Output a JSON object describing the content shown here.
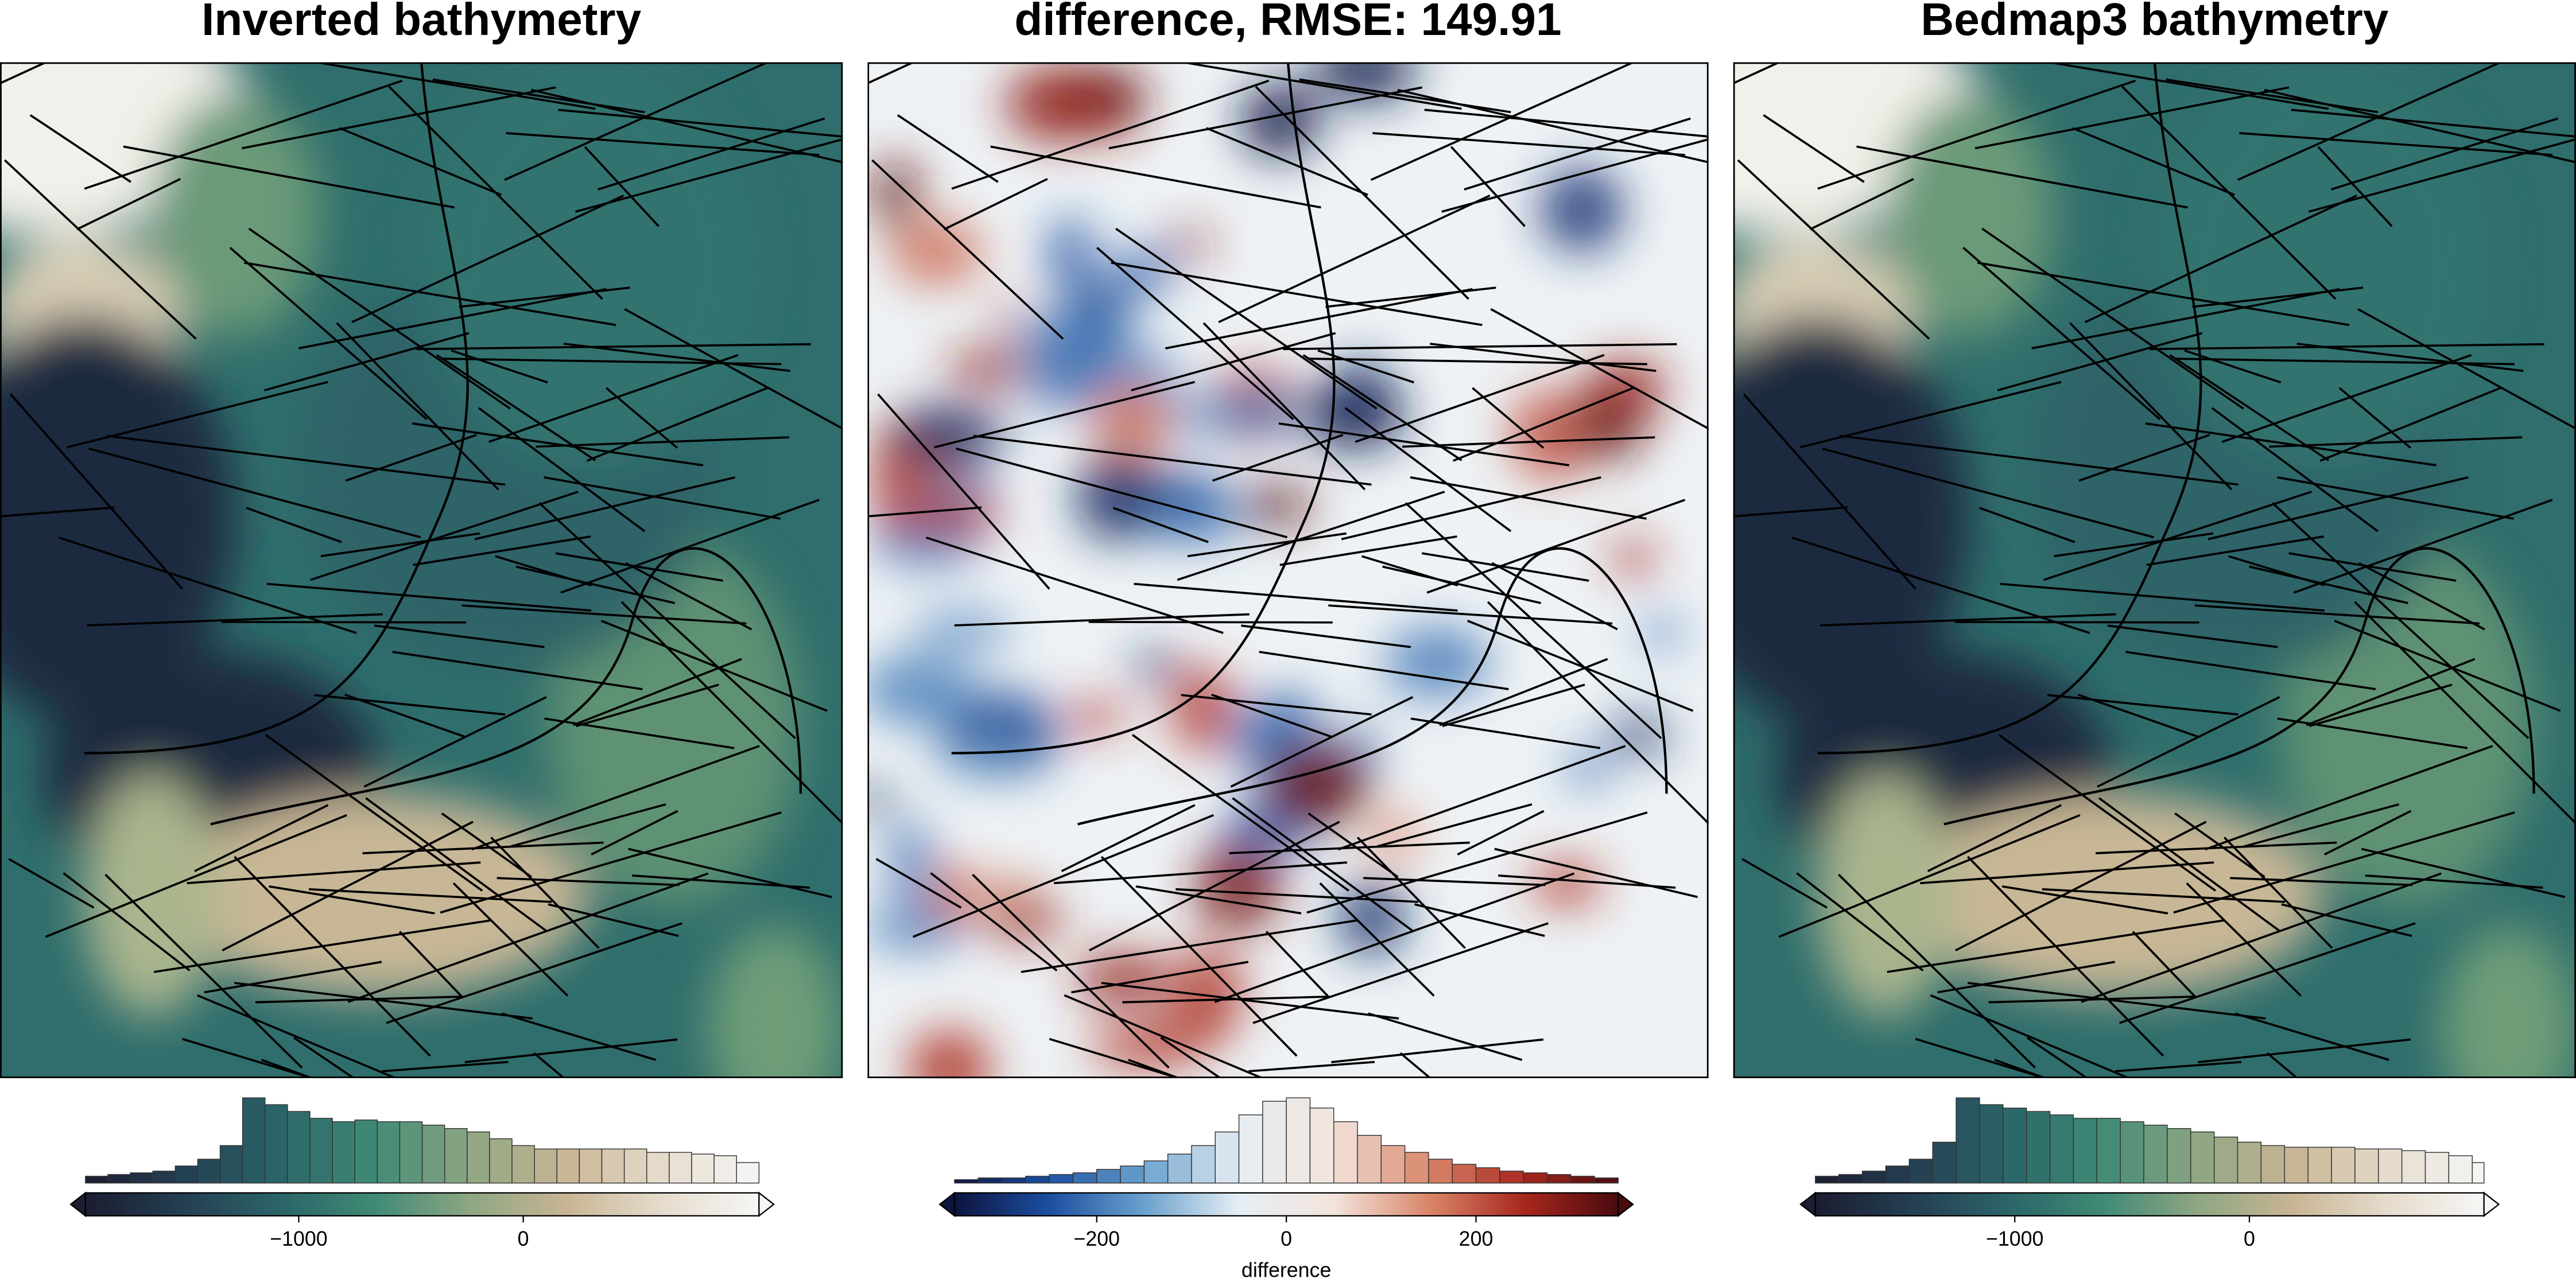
{
  "chart_data": [
    {
      "type": "histogram",
      "title": "Inverted bathymetry",
      "bins": [
        -1950,
        -1850,
        -1750,
        -1650,
        -1550,
        -1450,
        -1350,
        -1250,
        -1150,
        -1050,
        -950,
        -850,
        -750,
        -650,
        -550,
        -450,
        -350,
        -250,
        -150,
        -50,
        50,
        150,
        250,
        350,
        450,
        550,
        650,
        750,
        850,
        950,
        1050
      ],
      "values": [
        4,
        5,
        6,
        7,
        10,
        14,
        22,
        50,
        46,
        42,
        38,
        36,
        37,
        36,
        36,
        34,
        32,
        30,
        26,
        22,
        20,
        20,
        20,
        20,
        20,
        18,
        18,
        17,
        16,
        12
      ],
      "xlim": [
        -1950,
        1050
      ],
      "xticks": [
        {
          "value": -1000,
          "label": "−1000"
        },
        0
      ],
      "colormap": [
        "#1c1d30",
        "#243e52",
        "#2a6468",
        "#3f8a75",
        "#8ea683",
        "#c8b594",
        "#e6dccd",
        "#f6f6f6"
      ]
    },
    {
      "type": "histogram",
      "title": "difference, RMSE: 149.91",
      "xlabel": "difference",
      "bins": [
        -350,
        -325,
        -300,
        -275,
        -250,
        -225,
        -200,
        -175,
        -150,
        -125,
        -100,
        -75,
        -50,
        -25,
        0,
        25,
        50,
        75,
        100,
        125,
        150,
        175,
        200,
        225,
        250,
        275,
        300,
        325,
        350
      ],
      "values": [
        2,
        3,
        3,
        4,
        5,
        6,
        8,
        10,
        13,
        17,
        22,
        30,
        40,
        48,
        50,
        44,
        36,
        28,
        22,
        18,
        14,
        11,
        9,
        7,
        6,
        5,
        4,
        3
      ],
      "xlim": [
        -350,
        350
      ],
      "xticks": [
        {
          "value": -200,
          "label": "−200"
        },
        0,
        200
      ],
      "colormap": [
        "#0d1440",
        "#1c4fa0",
        "#6aa1cd",
        "#e6eef4",
        "#f3e4dc",
        "#d9866a",
        "#a8281e",
        "#4a0a0e"
      ]
    },
    {
      "type": "histogram",
      "title": "Bedmap3 bathymetry",
      "bins": [
        -1850,
        -1750,
        -1650,
        -1550,
        -1450,
        -1350,
        -1250,
        -1150,
        -1050,
        -950,
        -850,
        -750,
        -650,
        -550,
        -450,
        -350,
        -250,
        -150,
        -50,
        50,
        150,
        250,
        350,
        450,
        550,
        650,
        750,
        850,
        950,
        1000
      ],
      "values": [
        4,
        5,
        7,
        10,
        14,
        24,
        50,
        46,
        44,
        42,
        40,
        38,
        38,
        36,
        34,
        32,
        30,
        27,
        24,
        22,
        21,
        21,
        21,
        20,
        20,
        19,
        18,
        16,
        12
      ],
      "xlim": [
        -1850,
        1000
      ],
      "xticks": [
        {
          "value": -1000,
          "label": "−1000"
        },
        0
      ],
      "colormap": [
        "#1c1d30",
        "#243e52",
        "#2a6468",
        "#3f8a75",
        "#8ea683",
        "#c8b594",
        "#e6dccd",
        "#f6f6f6"
      ]
    }
  ]
}
